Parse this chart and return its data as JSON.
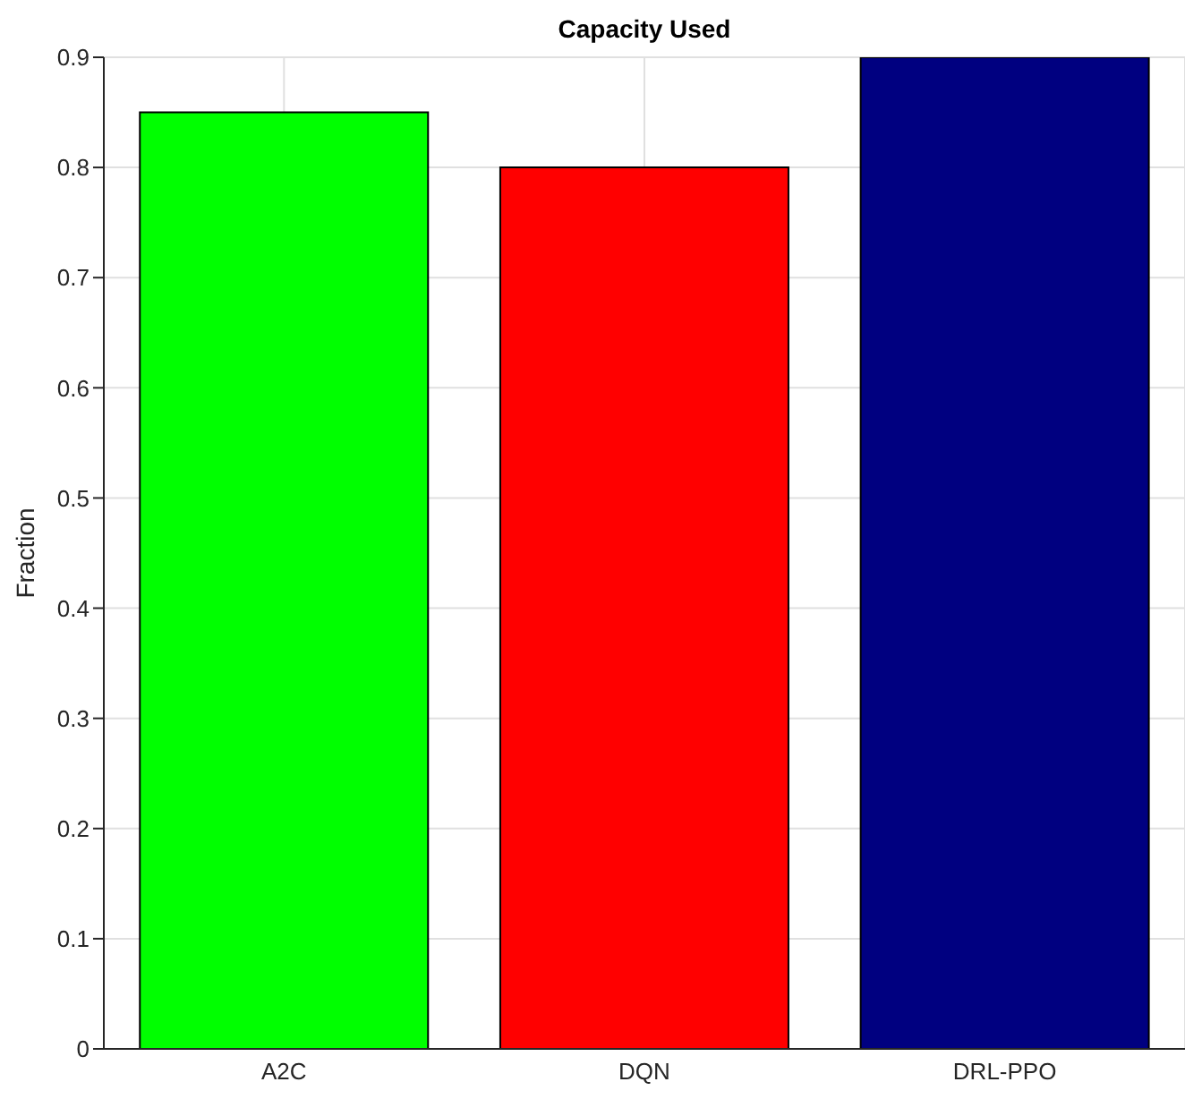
{
  "chart_data": {
    "type": "bar",
    "title": "Capacity Used",
    "ylabel": "Fraction",
    "categories": [
      "A2C",
      "DQN",
      "DRL-PPO"
    ],
    "values": [
      0.85,
      0.8,
      0.9
    ],
    "colors": [
      "#00ff00",
      "#ff0000",
      "#000080"
    ],
    "ylim": [
      0,
      0.9
    ],
    "yticks": [
      0,
      0.1,
      0.2,
      0.3,
      0.4,
      0.5,
      0.6,
      0.7,
      0.8,
      0.9
    ],
    "grid": true
  }
}
